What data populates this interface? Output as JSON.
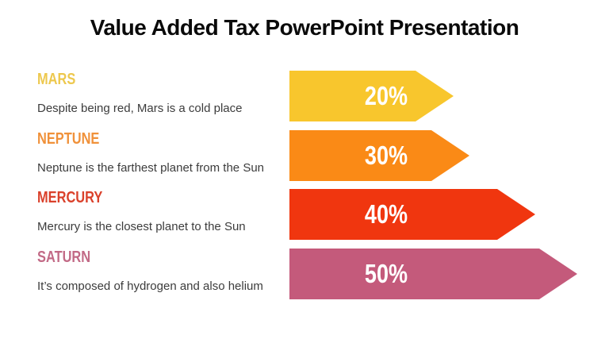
{
  "title": "Value Added Tax PowerPoint Presentation",
  "colors": {
    "background": "#ffffff",
    "title_text": "#0a0a0a",
    "description_text": "#3c3c3c",
    "arrow_label_text": "#ffffff"
  },
  "rows": [
    {
      "heading": "MARS",
      "heading_color": "#edc84e",
      "description": "Despite being red, Mars is a cold place",
      "value_label": "20%",
      "arrow_color": "#f8c62d"
    },
    {
      "heading": "NEPTUNE",
      "heading_color": "#f0913a",
      "description": "Neptune is the farthest planet from the Sun",
      "value_label": "30%",
      "arrow_color": "#fa8a16"
    },
    {
      "heading": "MERCURY",
      "heading_color": "#da412b",
      "description": "Mercury is the closest planet to the Sun",
      "value_label": "40%",
      "arrow_color": "#f0360f"
    },
    {
      "heading": "SATURN",
      "heading_color": "#c26a86",
      "description": "It’s composed of hydrogen and also helium",
      "value_label": "50%",
      "arrow_color": "#c45a7b"
    }
  ],
  "chart_data": {
    "type": "bar",
    "title": "Value Added Tax PowerPoint Presentation",
    "categories": [
      "Mars",
      "Neptune",
      "Mercury",
      "Saturn"
    ],
    "values": [
      20,
      30,
      40,
      50
    ],
    "value_labels": [
      "20%",
      "30%",
      "40%",
      "50%"
    ],
    "annotations": [
      "Despite being red, Mars is a cold place",
      "Neptune is the farthest planet from the Sun",
      "Mercury is the closest planet to the Sun",
      "It’s composed of hydrogen and also helium"
    ],
    "series_colors": [
      "#f8c62d",
      "#fa8a16",
      "#f0360f",
      "#c45a7b"
    ],
    "orientation": "horizontal",
    "bar_style": "arrow",
    "grid": false,
    "legend": false,
    "xlabel": "",
    "ylabel": ""
  }
}
